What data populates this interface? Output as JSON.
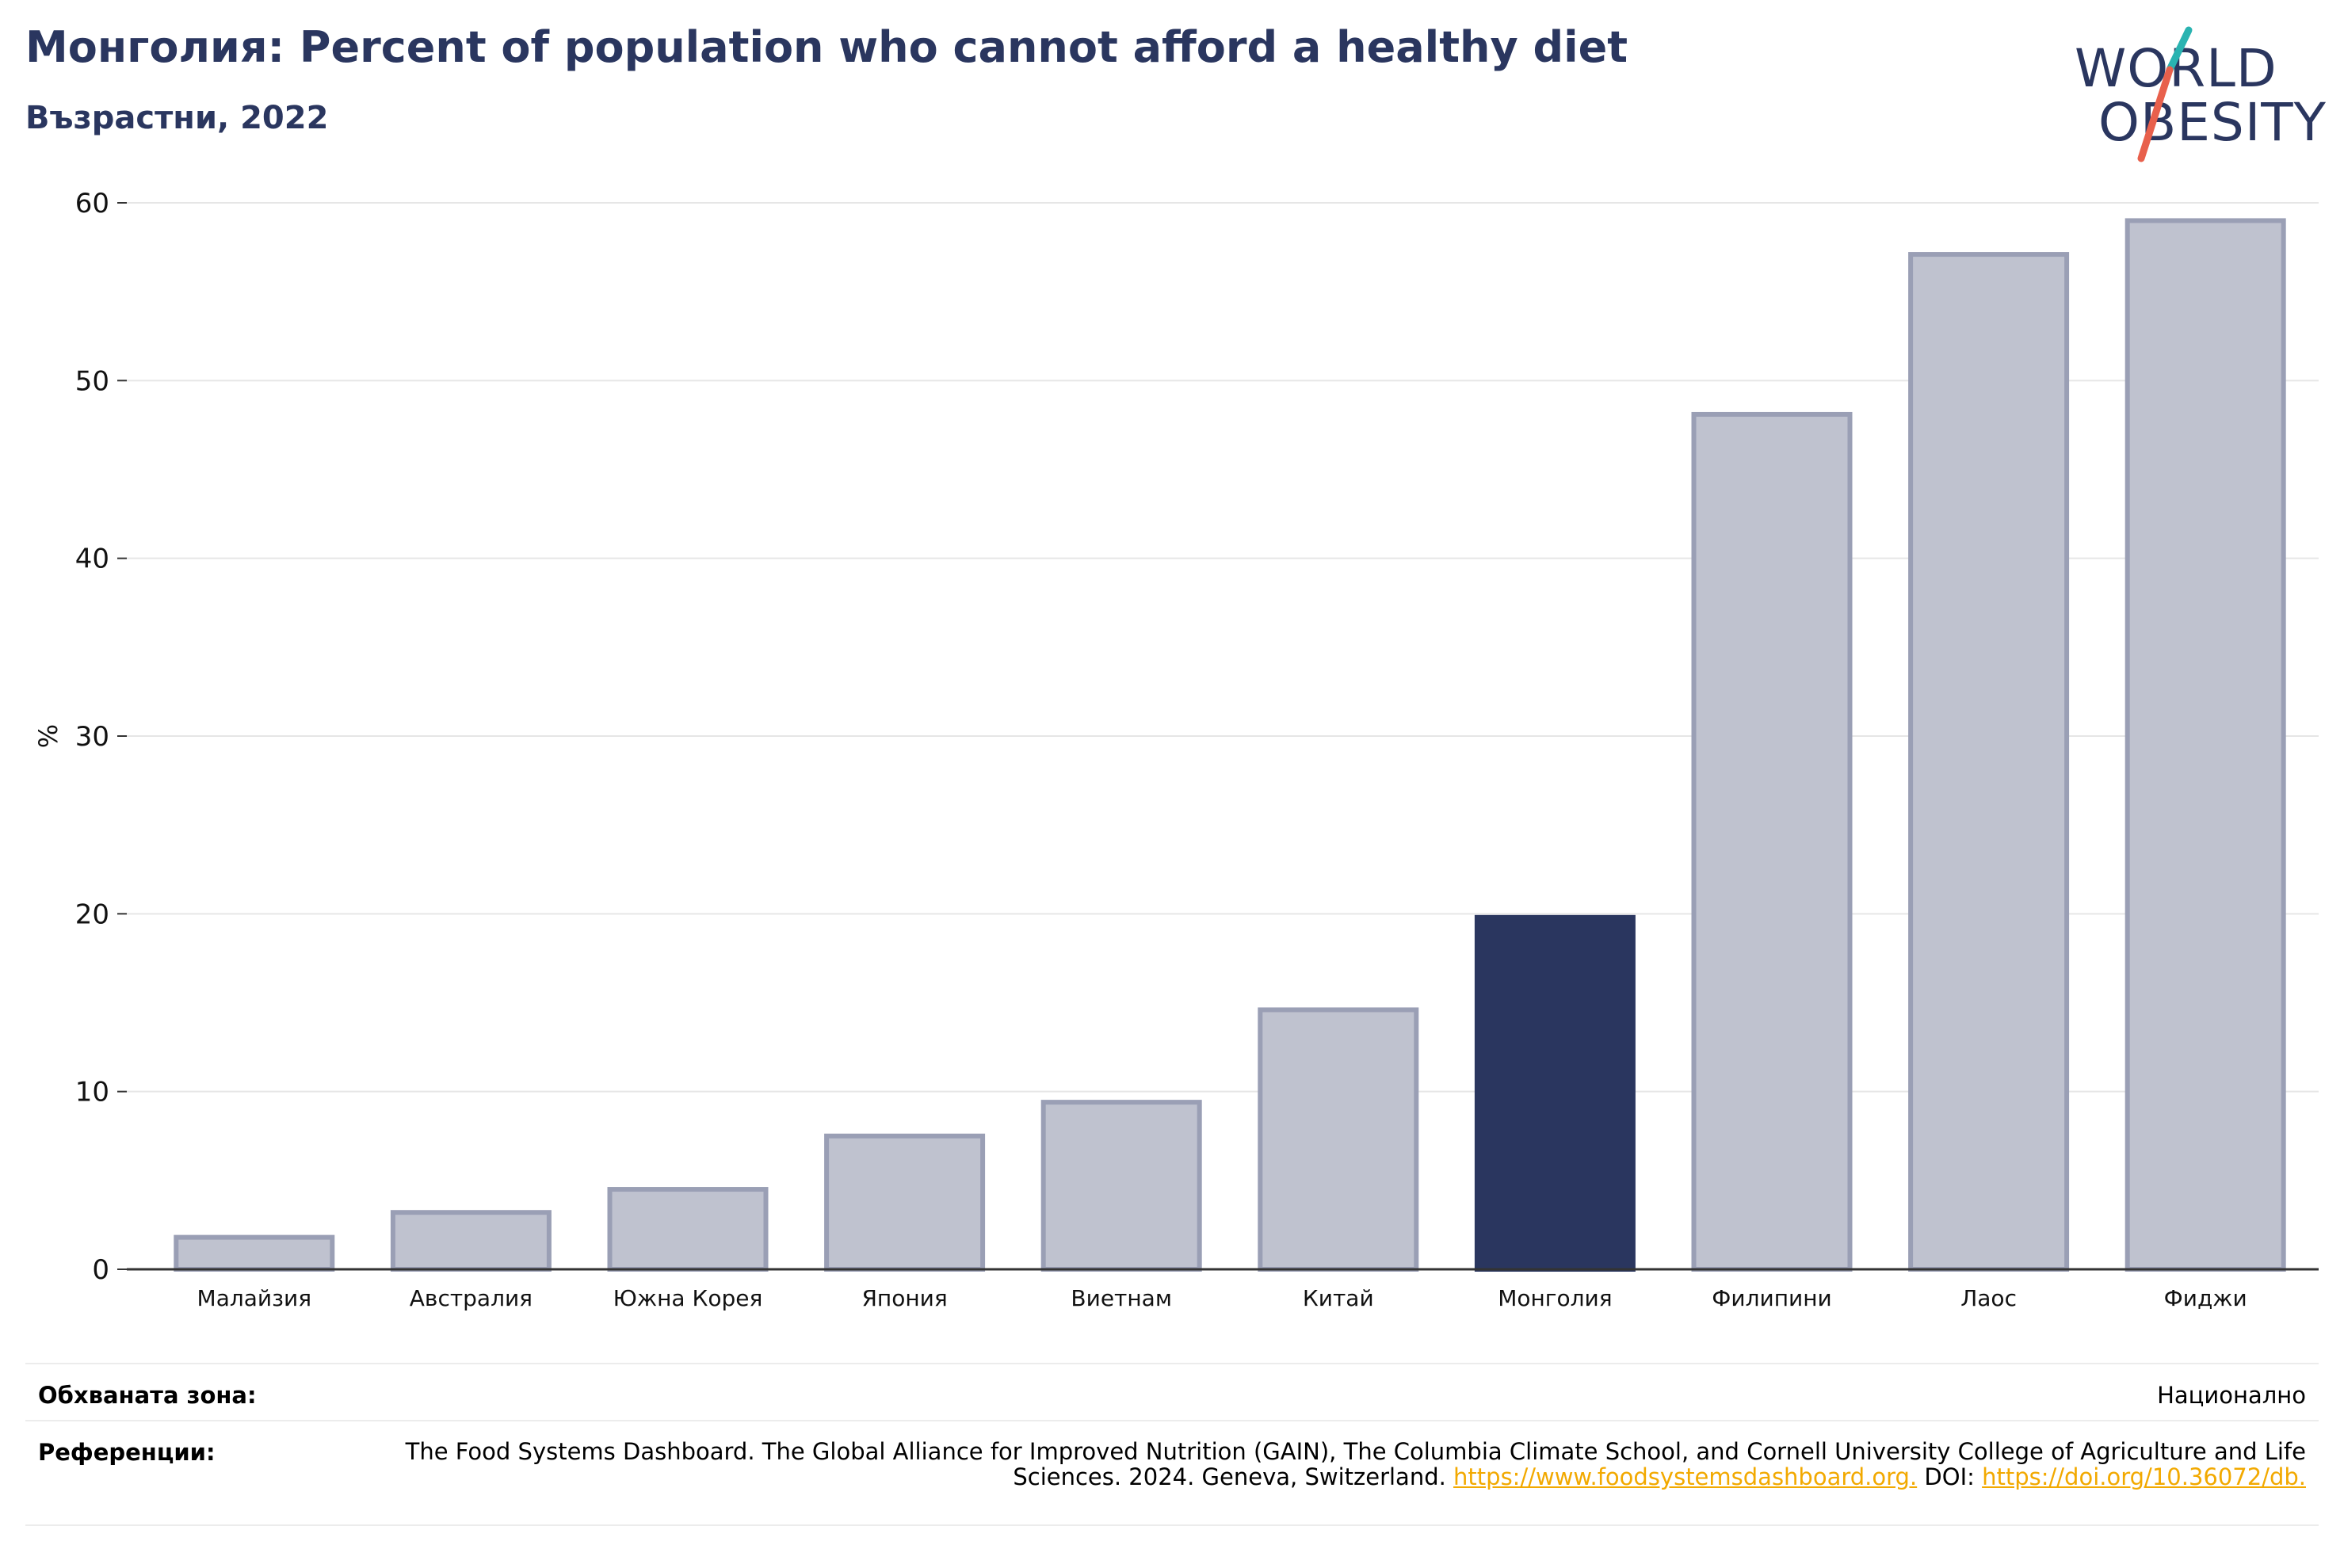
{
  "header": {
    "title": "Монголия: Percent of population who cannot afford a healthy diet",
    "subtitle": "Възрастни, 2022"
  },
  "logo": {
    "line1": "WORLD",
    "line2": "OBESITY",
    "colors": {
      "text": "#2a365f",
      "slash_top": "#2ab3b1",
      "slash_bottom": "#e8604c"
    }
  },
  "chart_data": {
    "type": "bar",
    "title": "",
    "xlabel": "",
    "ylabel": "%",
    "ylim": [
      0,
      60
    ],
    "yticks": [
      0,
      10,
      20,
      30,
      40,
      50,
      60
    ],
    "grid": true,
    "categories": [
      "Малайзия",
      "Австралия",
      "Южна Корея",
      "Япония",
      "Виетнам",
      "Китай",
      "Монголия",
      "Филипини",
      "Лаос",
      "Фиджи"
    ],
    "values": [
      1.8,
      3.2,
      4.5,
      7.5,
      9.4,
      14.6,
      19.8,
      48.1,
      57.1,
      59.0
    ],
    "highlight": "Монголия",
    "colors": {
      "bar": "#bfc2cf",
      "bar_outline": "#9a9fb5",
      "highlight": "#2a365f"
    }
  },
  "footer": {
    "coverage_label": "Обхваната зона:",
    "coverage_value": "Национално",
    "references_label": "Референции:",
    "references_text": "The Food Systems Dashboard. The Global Alliance for Improved Nutrition (GAIN), The Columbia Climate School, and Cornell University College of Agriculture and Life Sciences. 2024. Geneva, Switzerland.",
    "references_link1": "https://www.foodsystemsdashboard.org.",
    "references_doi_label": "DOI:",
    "references_link2": "https://doi.org/10.36072/db.",
    "link_color": "#f2a900"
  }
}
